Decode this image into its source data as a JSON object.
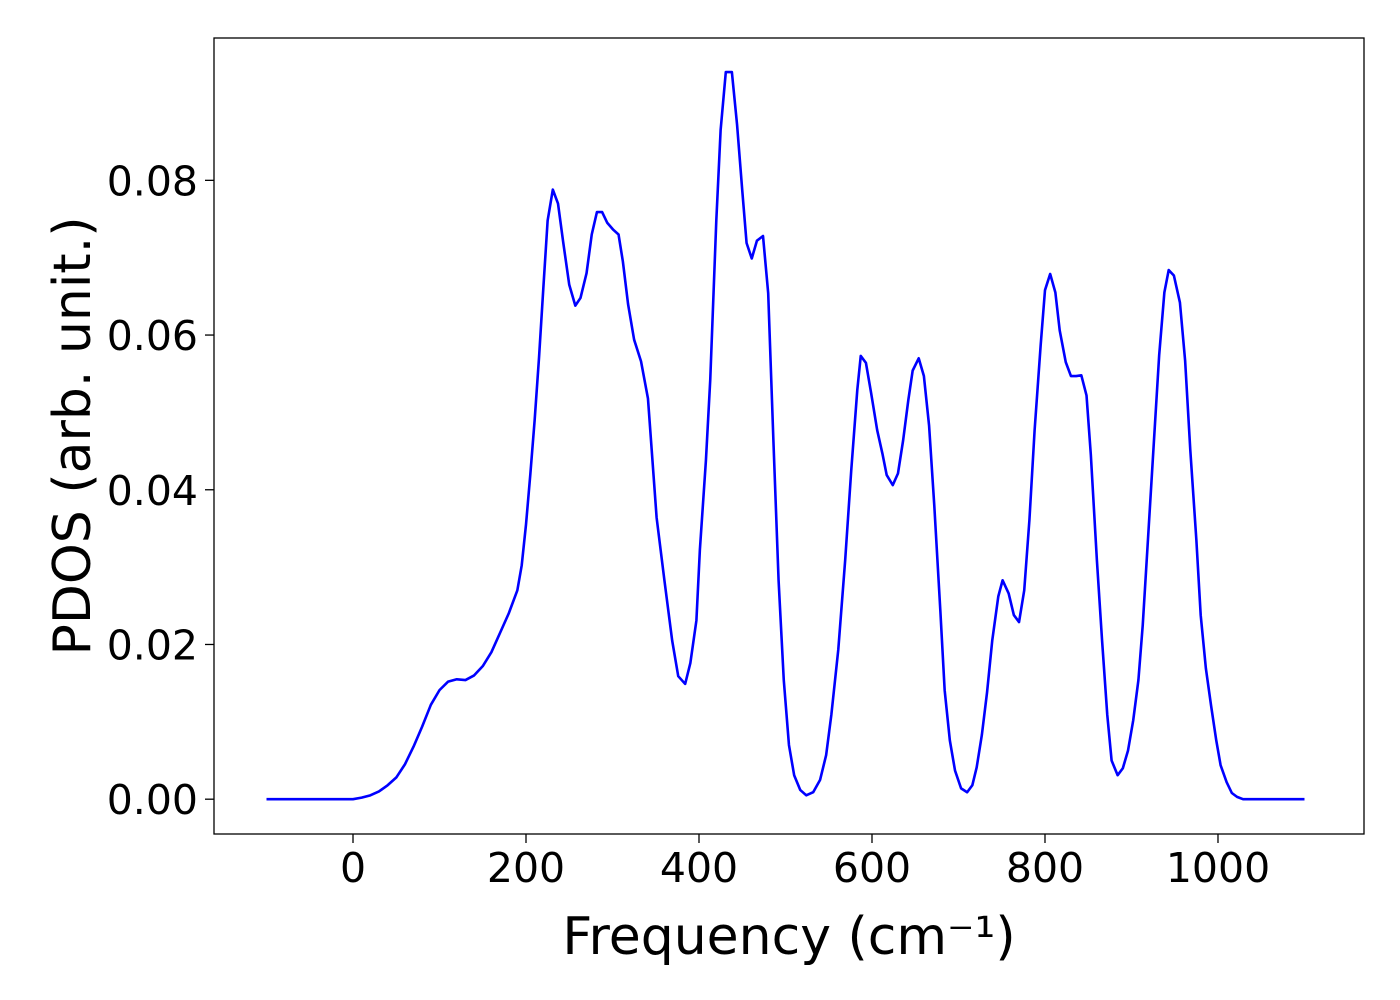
{
  "chart_data": {
    "type": "line",
    "xlabel": "Frequency (cm⁻¹)",
    "ylabel": "PDOS (arb. unit.)",
    "color": "#0000ff",
    "xlim": [
      -160.7,
      1168.8
    ],
    "ylim": [
      -0.0045,
      0.0984
    ],
    "xticks": [
      0,
      200,
      400,
      600,
      800,
      1000
    ],
    "yticks": [
      {
        "value": 0,
        "label": "0.00"
      },
      0.02,
      0.04,
      0.06,
      0.08
    ],
    "x": [
      -100,
      -50,
      0,
      10,
      20,
      30,
      40,
      50,
      60,
      70,
      80,
      90,
      100,
      110,
      120,
      130,
      140,
      150,
      160,
      170,
      180,
      190,
      195,
      200,
      205,
      210,
      215,
      220,
      225,
      231,
      237,
      243,
      250,
      257,
      263,
      270,
      276,
      282,
      288,
      294,
      301,
      307,
      312,
      318,
      325,
      333,
      341,
      351,
      360,
      369,
      376,
      384,
      390,
      397,
      401,
      408,
      413,
      420,
      425,
      431,
      438,
      444,
      450,
      455,
      461,
      467,
      474,
      480,
      486,
      492,
      498,
      504,
      510,
      517,
      524,
      532,
      540,
      547,
      553,
      561,
      569,
      576,
      583,
      587,
      593,
      599,
      606,
      612,
      617,
      624,
      630,
      636,
      642,
      647,
      654,
      660,
      666,
      672,
      679,
      684,
      690,
      696,
      703,
      710,
      716,
      721,
      727,
      733,
      739,
      746,
      751,
      758,
      764,
      770,
      776,
      782,
      788,
      795,
      800,
      806,
      812,
      817,
      824,
      830,
      836,
      842,
      848,
      853,
      860,
      866,
      872,
      877,
      884,
      890,
      896,
      902,
      908,
      913,
      919,
      926,
      932,
      938,
      943,
      949,
      956,
      962,
      968,
      975,
      980,
      986,
      992,
      998,
      1003,
      1010,
      1016,
      1022,
      1029,
      1050,
      1100
    ],
    "values": [
      0,
      0,
      0,
      0.0002,
      0.0005,
      0.001,
      0.0018,
      0.0028,
      0.0045,
      0.0068,
      0.0094,
      0.0122,
      0.0141,
      0.0152,
      0.0155,
      0.0154,
      0.016,
      0.0172,
      0.019,
      0.0215,
      0.024,
      0.027,
      0.0302,
      0.0355,
      0.042,
      0.049,
      0.057,
      0.066,
      0.0748,
      0.0788,
      0.077,
      0.072,
      0.0665,
      0.0638,
      0.0648,
      0.068,
      0.073,
      0.0759,
      0.0759,
      0.0745,
      0.0736,
      0.073,
      0.0695,
      0.064,
      0.0594,
      0.0566,
      0.0518,
      0.0364,
      0.0283,
      0.0205,
      0.0159,
      0.0149,
      0.0176,
      0.0231,
      0.0322,
      0.0438,
      0.0542,
      0.0748,
      0.0865,
      0.094,
      0.094,
      0.0872,
      0.0787,
      0.0719,
      0.0699,
      0.0722,
      0.0728,
      0.0654,
      0.0464,
      0.0283,
      0.0154,
      0.007,
      0.0031,
      0.0012,
      0.0005,
      0.0009,
      0.0025,
      0.0057,
      0.0109,
      0.0193,
      0.0309,
      0.0425,
      0.0529,
      0.0573,
      0.0564,
      0.0525,
      0.0477,
      0.0447,
      0.0419,
      0.0406,
      0.0421,
      0.0464,
      0.0516,
      0.0554,
      0.057,
      0.0547,
      0.0483,
      0.038,
      0.0244,
      0.0141,
      0.0076,
      0.0037,
      0.0014,
      0.0009,
      0.0018,
      0.0041,
      0.0083,
      0.0138,
      0.0205,
      0.0262,
      0.0283,
      0.0266,
      0.0238,
      0.0229,
      0.027,
      0.0361,
      0.0477,
      0.0587,
      0.0658,
      0.0679,
      0.0655,
      0.0606,
      0.0565,
      0.0547,
      0.0547,
      0.0548,
      0.0522,
      0.0445,
      0.0309,
      0.0205,
      0.0109,
      0.005,
      0.0031,
      0.004,
      0.0063,
      0.0102,
      0.0154,
      0.0225,
      0.0335,
      0.0464,
      0.0574,
      0.0655,
      0.0684,
      0.0677,
      0.0642,
      0.0567,
      0.0451,
      0.0335,
      0.0238,
      0.0169,
      0.0121,
      0.0076,
      0.0044,
      0.0022,
      0.0008,
      0.0003,
      0,
      0,
      0
    ]
  }
}
